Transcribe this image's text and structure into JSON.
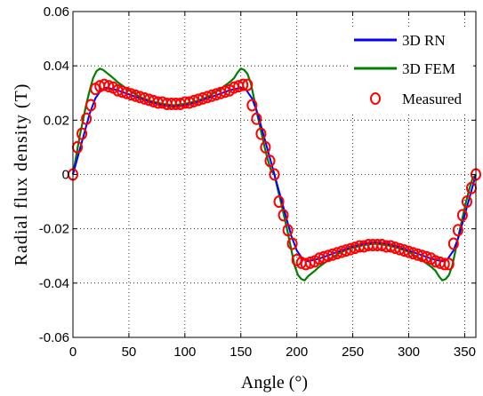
{
  "chart_data": {
    "type": "line",
    "title": "",
    "xlabel": "Angle (°)",
    "ylabel": "Radial flux density (T)",
    "xlim": [
      0,
      360
    ],
    "ylim": [
      -0.06,
      0.06
    ],
    "x_ticks": [
      0,
      50,
      100,
      150,
      200,
      250,
      300,
      350
    ],
    "x_tick_labels": [
      "0",
      "50",
      "100",
      "150",
      "200",
      "250",
      "300",
      "350"
    ],
    "y_ticks": [
      -0.06,
      -0.04,
      -0.02,
      0,
      0.02,
      0.04,
      0.06
    ],
    "y_tick_labels": [
      "-0.06",
      "-0.04",
      "-0.02",
      "0",
      "0.02",
      "0.04",
      "0.06"
    ],
    "grid": true,
    "legend_position": "top-right",
    "series": [
      {
        "name": "3D RN",
        "style": "line",
        "color": "#0000ff",
        "x": [
          0,
          5,
          10,
          15,
          20,
          25,
          30,
          40,
          50,
          60,
          70,
          80,
          90,
          100,
          110,
          120,
          130,
          140,
          150,
          155,
          160,
          165,
          170,
          175,
          180,
          185,
          190,
          195,
          200,
          205,
          210,
          220,
          230,
          240,
          250,
          260,
          270,
          280,
          290,
          300,
          310,
          320,
          330,
          335,
          340,
          345,
          350,
          355,
          360
        ],
        "y": [
          0,
          0.0075,
          0.015,
          0.0225,
          0.028,
          0.031,
          0.032,
          0.031,
          0.0295,
          0.028,
          0.0265,
          0.0255,
          0.025,
          0.0255,
          0.0265,
          0.028,
          0.0295,
          0.031,
          0.032,
          0.031,
          0.028,
          0.0225,
          0.015,
          0.0075,
          0,
          -0.0075,
          -0.015,
          -0.0225,
          -0.028,
          -0.031,
          -0.032,
          -0.031,
          -0.0295,
          -0.028,
          -0.0265,
          -0.0255,
          -0.025,
          -0.0255,
          -0.0265,
          -0.028,
          -0.0295,
          -0.031,
          -0.032,
          -0.031,
          -0.028,
          -0.0225,
          -0.015,
          -0.0075,
          0
        ]
      },
      {
        "name": "3D FEM",
        "style": "line",
        "color": "#007f00",
        "x": [
          0,
          3,
          6,
          9,
          12,
          15,
          18,
          21,
          24,
          27,
          30,
          33,
          36,
          40,
          45,
          50,
          60,
          70,
          80,
          90,
          100,
          110,
          120,
          130,
          135,
          140,
          144,
          147,
          150,
          153,
          156,
          159,
          162,
          165,
          168,
          171,
          174,
          177,
          180,
          183,
          186,
          189,
          192,
          195,
          198,
          201,
          204,
          207,
          210,
          213,
          216,
          220,
          225,
          230,
          240,
          250,
          260,
          270,
          280,
          290,
          300,
          310,
          315,
          320,
          324,
          327,
          330,
          333,
          336,
          339,
          342,
          345,
          348,
          351,
          354,
          357,
          360
        ],
        "y": [
          0,
          0.007,
          0.014,
          0.02,
          0.026,
          0.031,
          0.0355,
          0.038,
          0.039,
          0.0385,
          0.0375,
          0.0365,
          0.0355,
          0.034,
          0.0325,
          0.031,
          0.0285,
          0.027,
          0.026,
          0.0255,
          0.026,
          0.027,
          0.0285,
          0.031,
          0.0325,
          0.034,
          0.0355,
          0.0375,
          0.039,
          0.0385,
          0.037,
          0.0335,
          0.0275,
          0.0215,
          0.016,
          0.0105,
          0.0055,
          0.0015,
          0,
          -0.0055,
          -0.0105,
          -0.016,
          -0.0215,
          -0.0275,
          -0.0335,
          -0.037,
          -0.0385,
          -0.039,
          -0.0375,
          -0.0365,
          -0.0355,
          -0.034,
          -0.0325,
          -0.031,
          -0.0285,
          -0.027,
          -0.026,
          -0.0255,
          -0.026,
          -0.027,
          -0.0285,
          -0.031,
          -0.0325,
          -0.034,
          -0.0355,
          -0.0375,
          -0.039,
          -0.0385,
          -0.037,
          -0.0335,
          -0.0275,
          -0.0215,
          -0.016,
          -0.0105,
          -0.0055,
          -0.0015,
          0
        ]
      },
      {
        "name": "Measured",
        "style": "scatter",
        "color": "#ff0000",
        "x": [
          0,
          4,
          8,
          12,
          16,
          20,
          24,
          28,
          32,
          36,
          40,
          44,
          48,
          52,
          56,
          60,
          64,
          68,
          72,
          76,
          80,
          84,
          88,
          92,
          96,
          100,
          104,
          108,
          112,
          116,
          120,
          124,
          128,
          132,
          136,
          140,
          144,
          148,
          152,
          156,
          160,
          164,
          168,
          172,
          176,
          180,
          184,
          188,
          192,
          196,
          200,
          204,
          208,
          212,
          216,
          220,
          224,
          228,
          232,
          236,
          240,
          244,
          248,
          252,
          256,
          260,
          264,
          268,
          272,
          276,
          280,
          284,
          288,
          292,
          296,
          300,
          304,
          308,
          312,
          316,
          320,
          324,
          328,
          332,
          336,
          340,
          344,
          348,
          352,
          356,
          360
        ],
        "y": [
          0,
          0.01,
          0.015,
          0.0205,
          0.0255,
          0.0315,
          0.0325,
          0.033,
          0.0325,
          0.032,
          0.031,
          0.0305,
          0.03,
          0.0295,
          0.029,
          0.0285,
          0.028,
          0.0275,
          0.027,
          0.0265,
          0.0265,
          0.026,
          0.026,
          0.026,
          0.026,
          0.0265,
          0.0265,
          0.027,
          0.0275,
          0.028,
          0.0285,
          0.029,
          0.0295,
          0.03,
          0.0305,
          0.031,
          0.032,
          0.0325,
          0.033,
          0.033,
          0.0255,
          0.0205,
          0.015,
          0.01,
          0.005,
          0,
          -0.01,
          -0.015,
          -0.0205,
          -0.0255,
          -0.0315,
          -0.0325,
          -0.033,
          -0.0325,
          -0.032,
          -0.031,
          -0.0305,
          -0.03,
          -0.0295,
          -0.029,
          -0.0285,
          -0.028,
          -0.0275,
          -0.027,
          -0.0265,
          -0.0265,
          -0.026,
          -0.026,
          -0.026,
          -0.026,
          -0.0265,
          -0.0265,
          -0.027,
          -0.0275,
          -0.028,
          -0.0285,
          -0.029,
          -0.0295,
          -0.03,
          -0.0305,
          -0.031,
          -0.032,
          -0.0325,
          -0.033,
          -0.033,
          -0.0255,
          -0.0205,
          -0.015,
          -0.01,
          -0.005,
          0
        ]
      }
    ]
  }
}
